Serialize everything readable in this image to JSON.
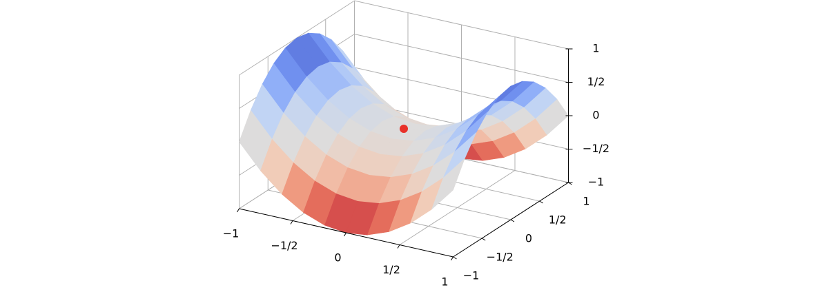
{
  "chart_data": {
    "type": "surface",
    "colormap": "coolwarm_r",
    "x": [
      -1,
      -0.8,
      -0.6,
      -0.4,
      -0.2,
      0,
      0.2,
      0.4,
      0.6,
      0.8,
      1
    ],
    "y": [
      -1,
      -0.8,
      -0.6,
      -0.4,
      -0.2,
      0,
      0.2,
      0.4,
      0.6,
      0.8,
      1
    ],
    "z": [
      [
        0,
        -0.36,
        -0.64,
        -0.84,
        -0.96,
        -1,
        -0.96,
        -0.84,
        -0.64,
        -0.36,
        0
      ],
      [
        0.36,
        0,
        -0.28,
        -0.48,
        -0.6,
        -0.64,
        -0.6,
        -0.48,
        -0.28,
        0,
        0.36
      ],
      [
        0.64,
        0.28,
        0,
        -0.2,
        -0.32,
        -0.36,
        -0.32,
        -0.2,
        0,
        0.28,
        0.64
      ],
      [
        0.84,
        0.48,
        0.2,
        0,
        -0.12,
        -0.16,
        -0.12,
        0,
        0.2,
        0.48,
        0.84
      ],
      [
        0.96,
        0.6,
        0.32,
        0.12,
        0,
        -0.04,
        0,
        0.12,
        0.32,
        0.6,
        0.96
      ],
      [
        1,
        0.64,
        0.36,
        0.16,
        0.04,
        0,
        0.04,
        0.16,
        0.36,
        0.64,
        1
      ],
      [
        0.96,
        0.6,
        0.32,
        0.12,
        0,
        -0.04,
        0,
        0.12,
        0.32,
        0.6,
        0.96
      ],
      [
        0.84,
        0.48,
        0.2,
        0,
        -0.12,
        -0.16,
        -0.12,
        0,
        0.2,
        0.48,
        0.84
      ],
      [
        0.64,
        0.28,
        0,
        -0.2,
        -0.32,
        -0.36,
        -0.32,
        -0.2,
        0,
        0.28,
        0.64
      ],
      [
        0.36,
        0,
        -0.28,
        -0.48,
        -0.6,
        -0.64,
        -0.6,
        -0.48,
        -0.28,
        0,
        0.36
      ],
      [
        0,
        -0.36,
        -0.64,
        -0.84,
        -0.96,
        -1,
        -0.96,
        -0.84,
        -0.64,
        -0.36,
        0
      ]
    ],
    "point": {
      "x": 0,
      "y": 0,
      "z": 0,
      "color": "#e8312a"
    },
    "xlim": [
      -1,
      1
    ],
    "ylim": [
      -1,
      1
    ],
    "zlim": [
      -1,
      1
    ],
    "xticks": [
      {
        "value": -1,
        "label": "−1"
      },
      {
        "value": -0.5,
        "label": "−1/2"
      },
      0,
      {
        "value": 0.5,
        "label": "1/2"
      },
      1
    ],
    "yticks": [
      {
        "value": -1,
        "label": "−1"
      },
      {
        "value": -0.5,
        "label": "−1/2"
      },
      0,
      {
        "value": 0.5,
        "label": "1/2"
      },
      1
    ],
    "zticks": [
      {
        "value": -1,
        "label": "−1"
      },
      {
        "value": -0.5,
        "label": "−1/2"
      },
      0,
      {
        "value": 0.5,
        "label": "1/2"
      },
      1
    ],
    "grid": true
  }
}
